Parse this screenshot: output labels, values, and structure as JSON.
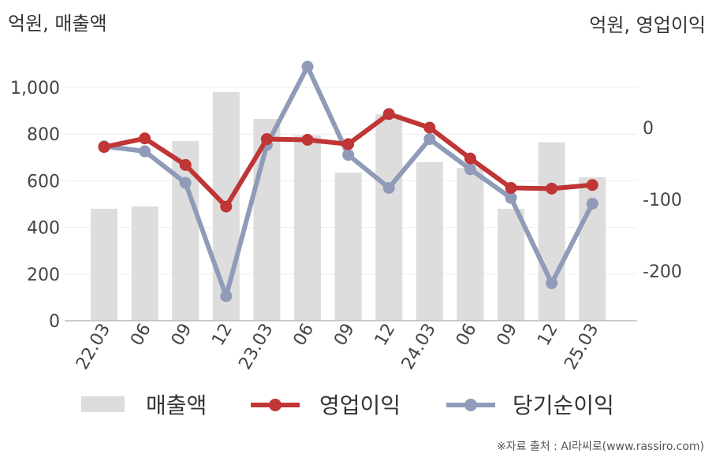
{
  "chart_data": {
    "type": "bar+line",
    "title": "",
    "left_axis_unit": "억원, 매출액",
    "right_axis_unit": "억원, 영업이익",
    "categories": [
      "22.03",
      "06",
      "09",
      "12",
      "23.03",
      "06",
      "09",
      "12",
      "24.03",
      "06",
      "09",
      "12",
      "25.03"
    ],
    "left_ylim": [
      0,
      1000
    ],
    "left_ticks": [
      0,
      200,
      400,
      600,
      800,
      1000
    ],
    "left_tick_labels": [
      "0",
      "200",
      "400",
      "600",
      "800",
      "1,000"
    ],
    "right_ylim": [
      -270,
      85
    ],
    "right_ticks": [
      0,
      -100,
      -200
    ],
    "right_tick_labels": [
      "0",
      "-100",
      "-200"
    ],
    "grid": true,
    "legend_position": "bottom",
    "series": [
      {
        "name": "매출액",
        "type": "bar",
        "axis": "left",
        "color": "#dddddd",
        "values": [
          480,
          490,
          770,
          980,
          865,
          795,
          635,
          885,
          680,
          655,
          480,
          765,
          615
        ]
      },
      {
        "name": "영업이익",
        "type": "line",
        "axis": "right",
        "color": "#c03535",
        "values": [
          -27,
          -15,
          -52,
          -110,
          -16,
          -17,
          -23,
          19,
          0,
          -43,
          -84,
          -85,
          -80
        ]
      },
      {
        "name": "당기순이익",
        "type": "line",
        "axis": "right",
        "color": "#8f9bb8",
        "values": [
          -26,
          -33,
          -77,
          -235,
          -24,
          85,
          -38,
          -84,
          -16,
          -58,
          -98,
          -217,
          -106
        ]
      }
    ]
  },
  "source_text": "※자료 출처 : AI라씨로(www.rassiro.com)"
}
